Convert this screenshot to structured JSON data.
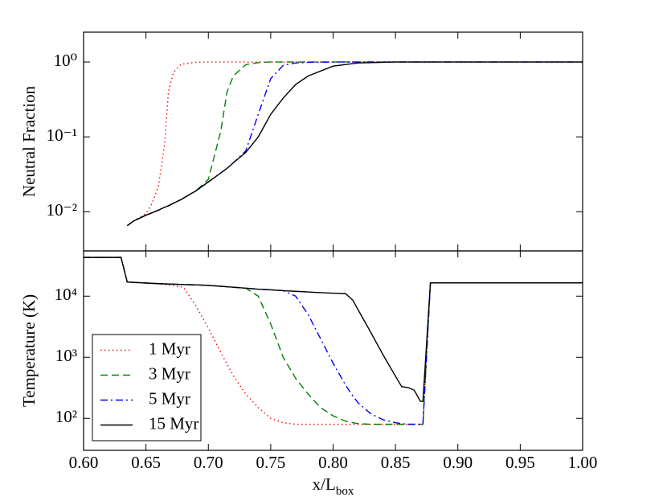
{
  "chart_data": [
    {
      "type": "line",
      "ylabel": "Neutral Fraction",
      "log_y": true,
      "x": [
        0.635,
        0.64,
        0.65,
        0.655,
        0.66,
        0.665,
        0.668,
        0.672,
        0.678,
        0.69,
        0.7,
        0.71,
        0.715,
        0.72,
        0.73,
        0.74,
        0.75,
        0.76,
        0.77,
        0.78,
        0.8,
        0.82,
        0.85,
        0.9,
        1.0
      ],
      "xlim": [
        0.6,
        1.0
      ],
      "ylim": [
        0.003,
        2.5
      ],
      "yticks": [
        {
          "value": 0.01,
          "label": "10⁻²"
        },
        {
          "value": 0.1,
          "label": "10⁻¹"
        },
        {
          "value": 1,
          "label": "10⁰"
        }
      ],
      "series": [
        {
          "name": "1 Myr",
          "color": "#ff0000",
          "dash": "dotted",
          "values": [
            0.0065,
            0.0075,
            0.0095,
            0.013,
            0.022,
            0.08,
            0.4,
            0.72,
            0.93,
            0.99,
            1,
            1,
            1,
            1,
            1,
            1,
            1,
            1,
            1,
            1,
            1,
            1,
            1,
            1,
            1
          ]
        },
        {
          "name": "3 Myr",
          "color": "#008000",
          "dash": "dashed",
          "values": [
            0.0065,
            0.0075,
            0.009,
            0.0097,
            0.0105,
            0.0115,
            0.012,
            0.013,
            0.0145,
            0.019,
            0.027,
            0.12,
            0.4,
            0.65,
            0.92,
            0.98,
            1,
            1,
            1,
            1,
            1,
            1,
            1,
            1,
            1
          ]
        },
        {
          "name": "5 Myr",
          "color": "#0000ff",
          "dash": "dashdot",
          "values": [
            0.0065,
            0.0075,
            0.009,
            0.0097,
            0.0105,
            0.0115,
            0.012,
            0.013,
            0.0145,
            0.019,
            0.025,
            0.033,
            0.038,
            0.045,
            0.065,
            0.2,
            0.6,
            0.9,
            0.97,
            0.99,
            1,
            1,
            1,
            1,
            1
          ]
        },
        {
          "name": "15 Myr",
          "color": "#000000",
          "dash": "solid",
          "values": [
            0.0065,
            0.0075,
            0.009,
            0.0097,
            0.0105,
            0.0115,
            0.012,
            0.013,
            0.0145,
            0.019,
            0.025,
            0.033,
            0.038,
            0.045,
            0.062,
            0.1,
            0.2,
            0.33,
            0.5,
            0.65,
            0.88,
            0.97,
            1,
            1,
            1
          ]
        }
      ]
    },
    {
      "type": "line",
      "ylabel": "Temperature (K)",
      "xlabel": "x/L",
      "xlabel_subscript": "box",
      "log_y": true,
      "legend": "lower left",
      "x": [
        0.6,
        0.63,
        0.635,
        0.66,
        0.68,
        0.69,
        0.7,
        0.71,
        0.72,
        0.73,
        0.74,
        0.75,
        0.76,
        0.77,
        0.78,
        0.79,
        0.8,
        0.81,
        0.816,
        0.82,
        0.83,
        0.84,
        0.85,
        0.855,
        0.86,
        0.865,
        0.87,
        0.872,
        0.878,
        0.9,
        1.0
      ],
      "xlim": [
        0.6,
        1.0
      ],
      "ylim": [
        30,
        55000
      ],
      "xticks": [
        {
          "value": 0.6,
          "label": "0.60"
        },
        {
          "value": 0.65,
          "label": "0.65"
        },
        {
          "value": 0.7,
          "label": "0.70"
        },
        {
          "value": 0.75,
          "label": "0.75"
        },
        {
          "value": 0.8,
          "label": "0.80"
        },
        {
          "value": 0.85,
          "label": "0.85"
        },
        {
          "value": 0.9,
          "label": "0.90"
        },
        {
          "value": 0.95,
          "label": "0.95"
        },
        {
          "value": 1.0,
          "label": "1.00"
        }
      ],
      "yticks": [
        {
          "value": 100,
          "label": "10²"
        },
        {
          "value": 1000,
          "label": "10³"
        },
        {
          "value": 10000,
          "label": "10⁴"
        }
      ],
      "series": [
        {
          "name": "1 Myr",
          "color": "#ff0000",
          "dash": "dotted",
          "values": [
            43000,
            43000,
            17000,
            16000,
            14000,
            7000,
            3000,
            1200,
            500,
            250,
            150,
            100,
            85,
            80,
            80,
            80,
            80,
            80,
            80,
            80,
            80,
            80,
            80,
            80,
            80,
            80,
            80,
            80,
            16500,
            16500,
            16500
          ]
        },
        {
          "name": "3 Myr",
          "color": "#008000",
          "dash": "dashed",
          "values": [
            43000,
            43000,
            17000,
            16000,
            15500,
            15300,
            15000,
            14500,
            14000,
            13500,
            10000,
            3500,
            1000,
            450,
            250,
            150,
            110,
            90,
            85,
            82,
            80,
            80,
            80,
            80,
            80,
            80,
            80,
            80,
            16500,
            16500,
            16500
          ]
        },
        {
          "name": "5 Myr",
          "color": "#0000ff",
          "dash": "dashdot",
          "values": [
            43000,
            43000,
            17000,
            16000,
            15500,
            15300,
            15000,
            14500,
            14000,
            13500,
            13000,
            12700,
            12300,
            10000,
            5000,
            2000,
            800,
            350,
            230,
            180,
            120,
            95,
            85,
            82,
            80,
            80,
            80,
            80,
            16500,
            16500,
            16500
          ]
        },
        {
          "name": "15 Myr",
          "color": "#000000",
          "dash": "solid",
          "values": [
            43000,
            43000,
            17000,
            16000,
            15500,
            15300,
            15000,
            14500,
            14000,
            13500,
            13000,
            12700,
            12300,
            12000,
            11700,
            11400,
            11200,
            11000,
            8500,
            6000,
            2600,
            1100,
            490,
            330,
            320,
            290,
            190,
            190,
            16500,
            16500,
            16500
          ]
        }
      ]
    }
  ]
}
